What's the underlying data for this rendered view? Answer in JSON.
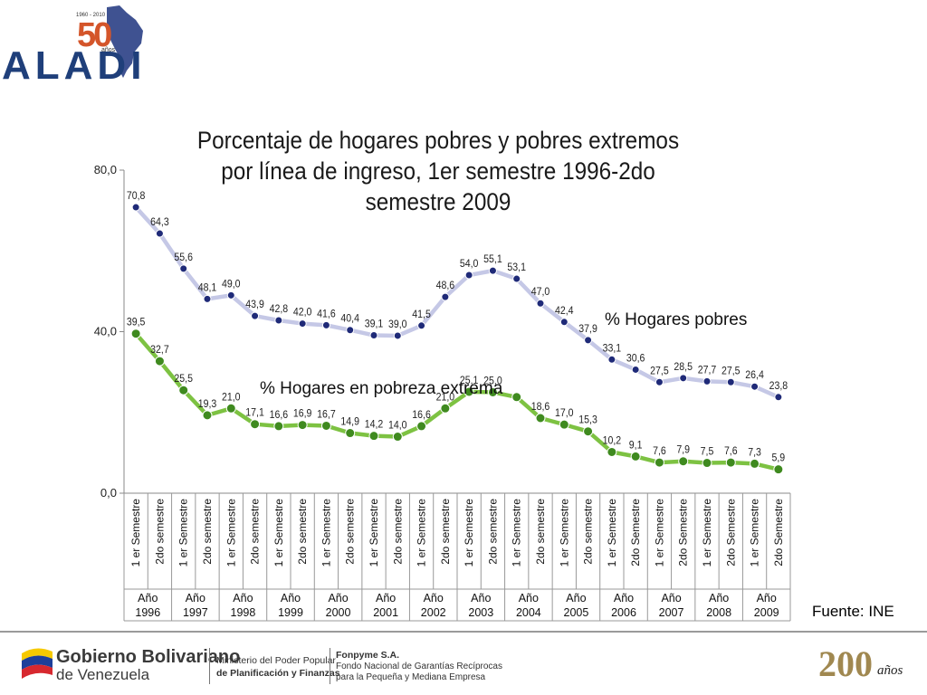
{
  "header": {
    "logo_word": "ALADI",
    "logo_number": "50",
    "logo_years": "1960 - 2010",
    "logo_anos": "años"
  },
  "source_note": "Fuente: INE",
  "footer": {
    "gobierno_line1": "Gobierno Bolivariano",
    "gobierno_line2": "de Venezuela",
    "ministerio_line1": "Ministerio del Poder Popular",
    "ministerio_line2": "de Planificación y Finanzas",
    "fonpyme_line1": "Fonpyme S.A.",
    "fonpyme_line2": "Fondo Nacional de Garantías Recíprocas",
    "fonpyme_line3": "para la Pequeña y Mediana Empresa",
    "bicentenario_number": "200",
    "bicentenario_word": "años"
  },
  "chart_data": {
    "type": "line",
    "title": "Porcentaje de hogares pobres y pobres extremos por línea de ingreso, 1er semestre 1996-2do semestre 2009",
    "ylim": [
      0,
      80
    ],
    "yticks": [
      "0,0",
      "40,0",
      "80,0"
    ],
    "semesters": [
      "1 er Semestre",
      "2do semestre",
      "1 er Semestre",
      "2do semestre",
      "1 er Semestre",
      "2do semestre",
      "1 er Semestre",
      "2do semestre",
      "1 er Semestre",
      "2do semestre",
      "1 er Semestre",
      "2do semestre",
      "1 er Semestre",
      "2do semestre",
      "1 er Semestre",
      "2do semestre",
      "1 er Semestre",
      "2do semestre",
      "1 er Semestre",
      "2do semestre",
      "1 er Semestre",
      "2do Semestre",
      "1 er Semestre",
      "2do Semestre",
      "1 er Semestre",
      "2do Semestre",
      "1 er Semestre",
      "2do Semestre"
    ],
    "year_groups": [
      {
        "top": "Año",
        "bottom": "1996"
      },
      {
        "top": "Año",
        "bottom": "1997"
      },
      {
        "top": "Año",
        "bottom": "1998"
      },
      {
        "top": "Año",
        "bottom": "1999"
      },
      {
        "top": "Año",
        "bottom": "2000"
      },
      {
        "top": "Año",
        "bottom": "2001"
      },
      {
        "top": "Año",
        "bottom": "2002"
      },
      {
        "top": "Año",
        "bottom": "2003"
      },
      {
        "top": "Año",
        "bottom": "2004"
      },
      {
        "top": "Año",
        "bottom": "2005"
      },
      {
        "top": "Año",
        "bottom": "2006"
      },
      {
        "top": "Año",
        "bottom": "2007"
      },
      {
        "top": "Año",
        "bottom": "2008"
      },
      {
        "top": "Año",
        "bottom": "2009"
      }
    ],
    "series": [
      {
        "name": "% Hogares pobres",
        "color": "#c5c8e6",
        "marker_color": "#1f2a78",
        "values": [
          70.8,
          64.3,
          55.6,
          48.1,
          49.0,
          43.9,
          42.8,
          42.0,
          41.6,
          40.4,
          39.1,
          39.0,
          41.5,
          48.6,
          54.0,
          55.1,
          53.1,
          47.0,
          42.4,
          37.9,
          33.1,
          30.6,
          27.5,
          28.5,
          27.7,
          27.5,
          26.4,
          23.8
        ],
        "labels": [
          "70,8",
          "64,3",
          "55,6",
          "48,1",
          "49,0",
          "43,9",
          "42,8",
          "42,0",
          "41,6",
          "40,4",
          "39,1",
          "39,0",
          "41,5",
          "48,6",
          "54,0",
          "55,1",
          "53,1",
          "47,0",
          "42,4",
          "37,9",
          "33,1",
          "30,6",
          "27,5",
          "28,5",
          "27,7",
          "27,5",
          "26,4",
          "23,8"
        ]
      },
      {
        "name": "% Hogares en pobreza extrema",
        "color": "#7dc242",
        "marker_color": "#3f8a1f",
        "values": [
          39.5,
          32.7,
          25.5,
          19.3,
          21.0,
          17.1,
          16.6,
          16.9,
          16.7,
          14.9,
          14.2,
          14.0,
          16.6,
          21.0,
          25.1,
          25.0,
          23.8,
          18.6,
          17.0,
          15.3,
          10.2,
          9.1,
          7.6,
          7.9,
          7.5,
          7.6,
          7.3,
          5.9
        ],
        "labels": [
          "39,5",
          "32,7",
          "25,5",
          "19,3",
          "21,0",
          "17,1",
          "16,6",
          "16,9",
          "16,7",
          "14,9",
          "14,2",
          "14,0",
          "16,6",
          "21,0",
          "25,1",
          "25,0",
          "",
          "18,6",
          "17,0",
          "15,3",
          "10,2",
          "9,1",
          "7,6",
          "7,9",
          "7,5",
          "7,6",
          "7,3",
          "5,9"
        ]
      }
    ],
    "legend_labels": [
      "% Hogares pobres",
      "% Hogares en pobreza extrema"
    ]
  }
}
